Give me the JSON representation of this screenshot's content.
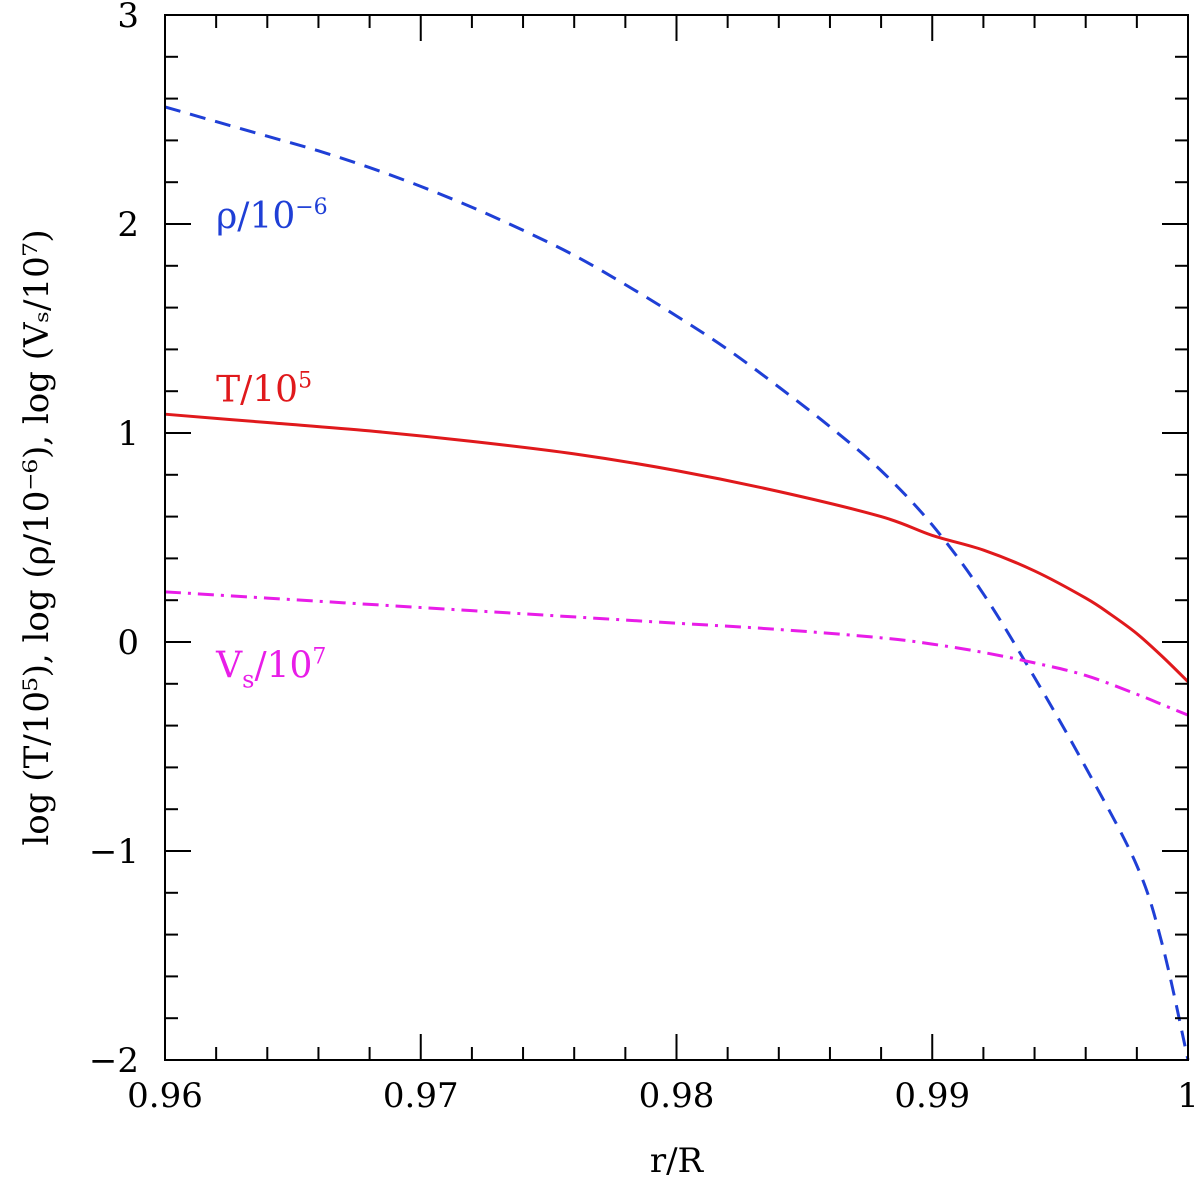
{
  "chart_data": {
    "type": "line",
    "xlabel": "r/R",
    "ylabel": "log (T/10⁵), log (ρ/10⁻⁶), log (Vₛ/10⁷)",
    "xlim": [
      0.96,
      1.0
    ],
    "ylim": [
      -2,
      3
    ],
    "xticks": [
      0.96,
      0.97,
      0.98,
      0.99,
      1.0
    ],
    "xtick_labels": [
      "0.96",
      "0.97",
      "0.98",
      "0.99",
      "1"
    ],
    "yticks": [
      -2,
      -1,
      0,
      1,
      2,
      3
    ],
    "ytick_labels": [
      "−2",
      "−1",
      "0",
      "1",
      "2",
      "3"
    ],
    "grid": false,
    "series": [
      {
        "name": "ρ/10⁻⁶",
        "label_parts": [
          "ρ/10",
          "−6"
        ],
        "color": "#1f3fd6",
        "style": "dashed",
        "label_pos": [
          0.962,
          1.98
        ],
        "x": [
          0.96,
          0.962,
          0.964,
          0.966,
          0.968,
          0.97,
          0.972,
          0.974,
          0.976,
          0.978,
          0.98,
          0.982,
          0.984,
          0.986,
          0.988,
          0.99,
          0.992,
          0.994,
          0.996,
          0.998,
          0.999,
          1.0
        ],
        "y": [
          2.56,
          2.49,
          2.42,
          2.35,
          2.27,
          2.18,
          2.08,
          1.97,
          1.85,
          1.71,
          1.56,
          1.4,
          1.22,
          1.03,
          0.82,
          0.56,
          0.23,
          -0.17,
          -0.6,
          -1.07,
          -1.45,
          -2.0
        ]
      },
      {
        "name": "T/10⁵",
        "label_parts": [
          "T/10",
          "5"
        ],
        "color": "#e0191c",
        "style": "solid",
        "label_pos": [
          0.962,
          1.15
        ],
        "x": [
          0.96,
          0.964,
          0.968,
          0.972,
          0.976,
          0.98,
          0.984,
          0.988,
          0.99,
          0.992,
          0.994,
          0.996,
          0.997,
          0.998,
          0.999,
          1.0
        ],
        "y": [
          1.09,
          1.05,
          1.01,
          0.96,
          0.9,
          0.82,
          0.72,
          0.6,
          0.51,
          0.44,
          0.34,
          0.21,
          0.13,
          0.04,
          -0.07,
          -0.19
        ]
      },
      {
        "name": "Vₛ/10⁷",
        "label_parts": [
          "V",
          "s",
          "/10",
          "7"
        ],
        "color": "#e81de8",
        "style": "dashdot",
        "label_pos": [
          0.962,
          -0.17
        ],
        "x": [
          0.96,
          0.964,
          0.968,
          0.972,
          0.976,
          0.98,
          0.984,
          0.988,
          0.99,
          0.992,
          0.994,
          0.996,
          0.998,
          0.999,
          1.0
        ],
        "y": [
          0.24,
          0.21,
          0.18,
          0.15,
          0.12,
          0.09,
          0.06,
          0.02,
          -0.01,
          -0.05,
          -0.1,
          -0.16,
          -0.25,
          -0.3,
          -0.35
        ]
      }
    ]
  }
}
